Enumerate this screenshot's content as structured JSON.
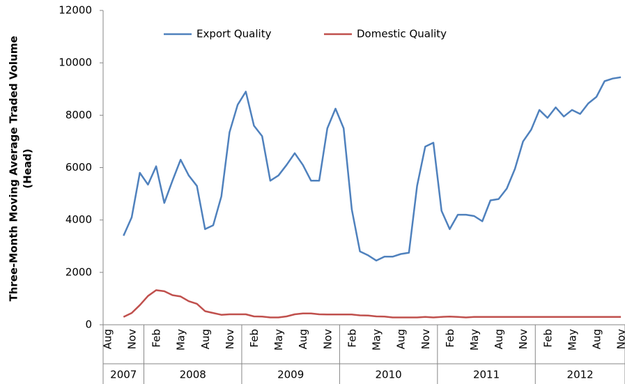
{
  "chart_data": {
    "type": "line",
    "y_label": [
      "Three-Month Moving Average Traded Volume",
      "(Head)"
    ],
    "categories": [
      "Aug",
      null,
      null,
      "Nov",
      null,
      null,
      "Feb",
      null,
      null,
      "May",
      null,
      null,
      "Aug",
      null,
      null,
      "Nov",
      null,
      null,
      "Feb",
      null,
      null,
      "May",
      null,
      null,
      "Aug",
      null,
      null,
      "Nov",
      null,
      null,
      "Feb",
      null,
      null,
      "May",
      null,
      null,
      "Aug",
      null,
      null,
      "Nov",
      null,
      null,
      "Feb",
      null,
      null,
      "May",
      null,
      null,
      "Aug",
      null,
      null,
      "Nov",
      null,
      null,
      "Feb",
      null,
      null,
      "May",
      null,
      null,
      "Aug",
      null,
      null,
      "Nov"
    ],
    "year_groups": [
      {
        "label": "2007",
        "months": 5
      },
      {
        "label": "2008",
        "months": 12
      },
      {
        "label": "2009",
        "months": 12
      },
      {
        "label": "2010",
        "months": 12
      },
      {
        "label": "2011",
        "months": 12
      },
      {
        "label": "2012",
        "months": 11
      }
    ],
    "series": [
      {
        "name": "Export Quality",
        "color": "#4f81bd",
        "values": [
          null,
          null,
          3400,
          4100,
          5800,
          5350,
          6050,
          4650,
          5500,
          6300,
          5700,
          5300,
          3650,
          3800,
          4900,
          7350,
          8400,
          8900,
          7600,
          7200,
          5500,
          5700,
          6100,
          6550,
          6100,
          5500,
          5500,
          7500,
          8250,
          7500,
          4400,
          2800,
          2650,
          2450,
          2600,
          2600,
          2700,
          2750,
          5300,
          6800,
          6950,
          4350,
          3650,
          4200,
          4200,
          4150,
          3950,
          4750,
          4800,
          5200,
          5950,
          7000,
          7450,
          8200,
          7900,
          8300,
          7950,
          8200,
          8050,
          8450,
          8700,
          9300,
          9400,
          9450
        ]
      },
      {
        "name": "Domestic Quality",
        "color": "#c0504d",
        "values": [
          null,
          null,
          300,
          450,
          750,
          1100,
          1320,
          1280,
          1130,
          1080,
          900,
          800,
          520,
          450,
          380,
          400,
          400,
          400,
          320,
          310,
          280,
          280,
          320,
          400,
          430,
          430,
          400,
          390,
          390,
          390,
          390,
          360,
          350,
          320,
          310,
          280,
          280,
          280,
          280,
          300,
          280,
          300,
          310,
          300,
          280,
          300,
          300,
          300,
          300,
          300,
          300,
          300,
          300,
          300,
          300,
          300,
          300,
          300,
          300,
          300,
          300,
          300,
          300,
          300
        ]
      }
    ],
    "ylim": [
      0,
      12000
    ],
    "yticks": [
      0,
      2000,
      4000,
      6000,
      8000,
      10000,
      12000
    ],
    "legend": "top"
  }
}
